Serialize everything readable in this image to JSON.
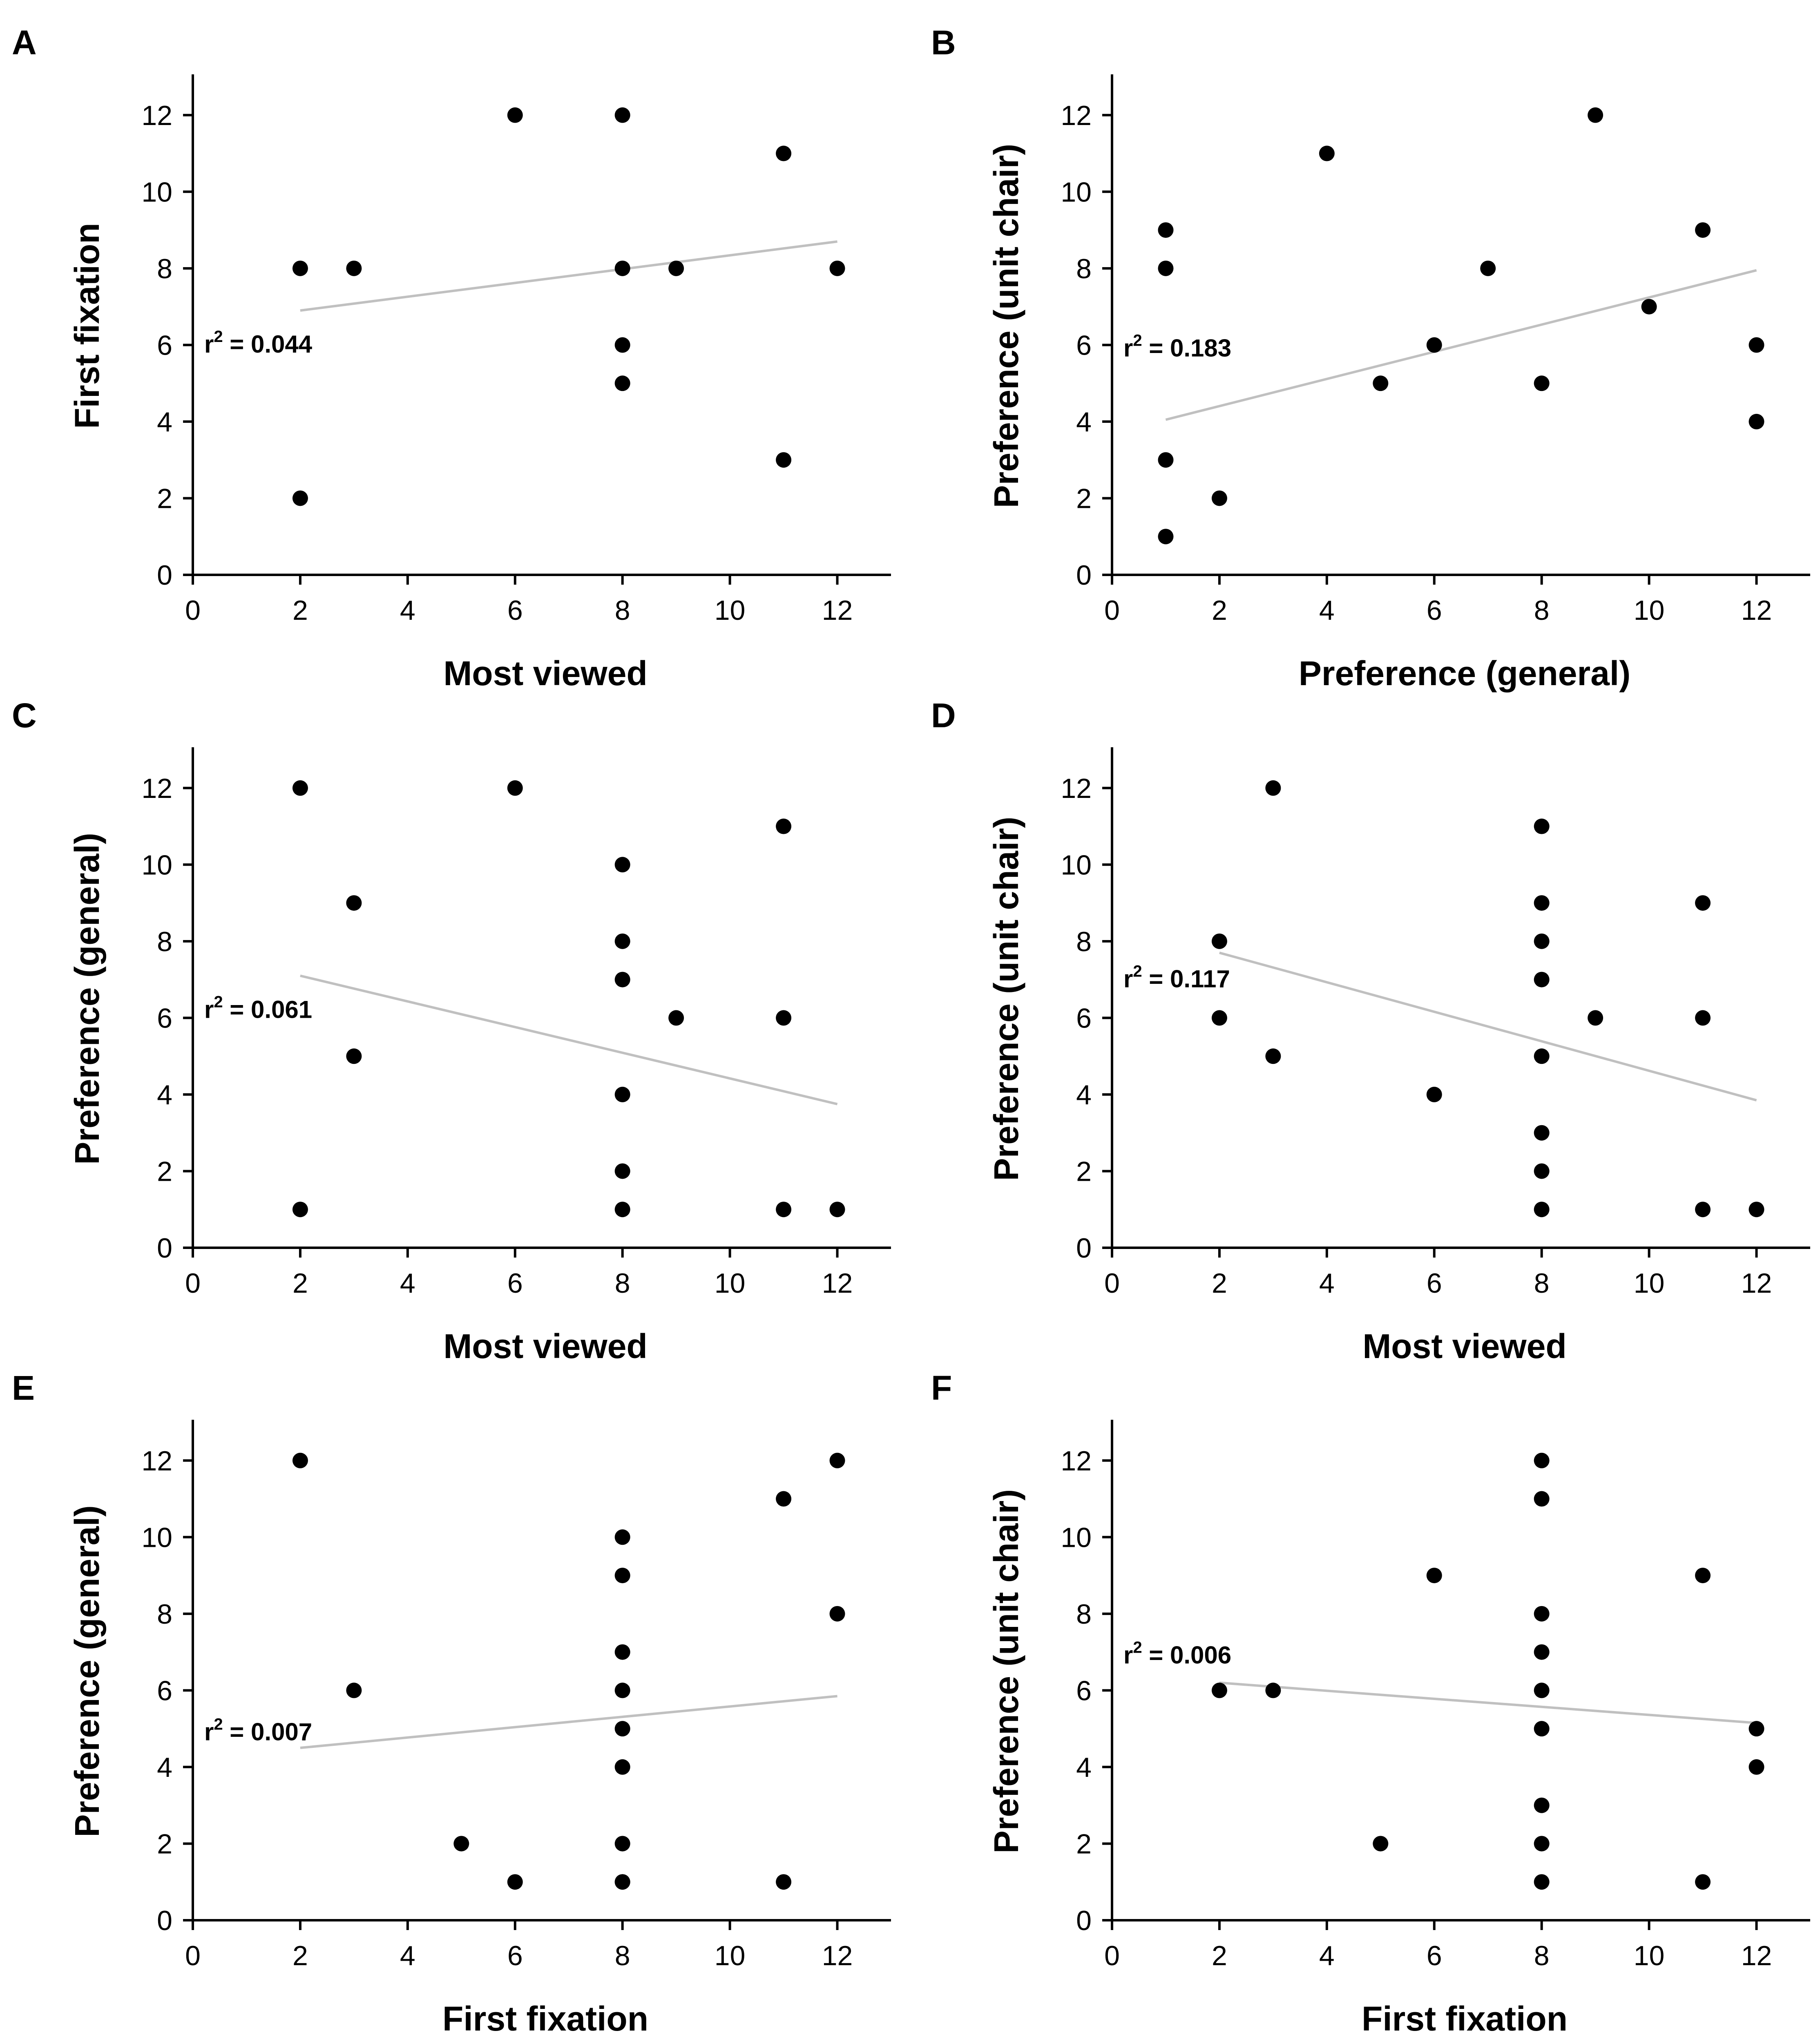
{
  "colors": {
    "points": "#000000",
    "fit_line": "#c0c0c0",
    "axes": "#000000",
    "background": "#ffffff"
  },
  "chart_data": [
    {
      "panel": "A",
      "type": "scatter",
      "xlabel": "Most viewed",
      "ylabel": "First fixation",
      "xlim": [
        0,
        13
      ],
      "ylim": [
        0,
        13
      ],
      "xticks": [
        "0",
        "2",
        "4",
        "6",
        "8",
        "10",
        "12"
      ],
      "yticks": [
        "0",
        "2",
        "4",
        "6",
        "8",
        "10",
        "12"
      ],
      "annotation": {
        "r": "r",
        "sup": "2",
        "value": " = 0.044"
      },
      "fit": {
        "x": [
          2,
          12
        ],
        "y": [
          6.9,
          8.7
        ]
      },
      "x": [
        2,
        2,
        3,
        6,
        8,
        8,
        8,
        8,
        9,
        11,
        11,
        12
      ],
      "y": [
        8,
        2,
        8,
        12,
        12,
        8,
        6,
        5,
        8,
        11,
        3,
        8
      ]
    },
    {
      "panel": "B",
      "type": "scatter",
      "xlabel": "Preference (general)",
      "ylabel": "Preference (unit chair)",
      "xlim": [
        0,
        13
      ],
      "ylim": [
        0,
        13
      ],
      "xticks": [
        "0",
        "2",
        "4",
        "6",
        "8",
        "10",
        "12"
      ],
      "yticks": [
        "0",
        "2",
        "4",
        "6",
        "8",
        "10",
        "12"
      ],
      "annotation": {
        "r": "r",
        "sup": "2",
        "value": " = 0.183"
      },
      "fit": {
        "x": [
          1,
          12
        ],
        "y": [
          4.05,
          7.95
        ]
      },
      "x": [
        1,
        1,
        1,
        1,
        2,
        4,
        5,
        6,
        7,
        8,
        9,
        10,
        11,
        12,
        12
      ],
      "y": [
        9,
        8,
        3,
        1,
        2,
        11,
        5,
        6,
        8,
        5,
        12,
        7,
        9,
        6,
        4
      ]
    },
    {
      "panel": "C",
      "type": "scatter",
      "xlabel": "Most viewed",
      "ylabel": "Preference (general)",
      "xlim": [
        0,
        13
      ],
      "ylim": [
        0,
        13
      ],
      "xticks": [
        "0",
        "2",
        "4",
        "6",
        "8",
        "10",
        "12"
      ],
      "yticks": [
        "0",
        "2",
        "4",
        "6",
        "8",
        "10",
        "12"
      ],
      "annotation": {
        "r": "r",
        "sup": "2",
        "value": " = 0.061"
      },
      "fit": {
        "x": [
          2,
          12
        ],
        "y": [
          7.1,
          3.75
        ]
      },
      "x": [
        2,
        2,
        3,
        3,
        6,
        8,
        8,
        8,
        8,
        8,
        8,
        9,
        11,
        11,
        11,
        12
      ],
      "y": [
        12,
        1,
        9,
        5,
        12,
        10,
        8,
        7,
        4,
        2,
        1,
        6,
        11,
        6,
        1,
        1
      ]
    },
    {
      "panel": "D",
      "type": "scatter",
      "xlabel": "Most viewed",
      "ylabel": "Preference (unit chair)",
      "xlim": [
        0,
        13
      ],
      "ylim": [
        0,
        13
      ],
      "xticks": [
        "0",
        "2",
        "4",
        "6",
        "8",
        "10",
        "12"
      ],
      "yticks": [
        "0",
        "2",
        "4",
        "6",
        "8",
        "10",
        "12"
      ],
      "annotation": {
        "r": "r",
        "sup": "2",
        "value": " = 0.117"
      },
      "fit": {
        "x": [
          2,
          12
        ],
        "y": [
          7.7,
          3.85
        ]
      },
      "x": [
        2,
        2,
        3,
        3,
        6,
        8,
        8,
        8,
        8,
        8,
        8,
        8,
        8,
        9,
        11,
        11,
        11,
        12
      ],
      "y": [
        8,
        6,
        12,
        5,
        4,
        11,
        9,
        8,
        7,
        5,
        3,
        2,
        1,
        6,
        9,
        6,
        1,
        1
      ]
    },
    {
      "panel": "E",
      "type": "scatter",
      "xlabel": "First fixation",
      "ylabel": "Preference (general)",
      "xlim": [
        0,
        13
      ],
      "ylim": [
        0,
        13
      ],
      "xticks": [
        "0",
        "2",
        "4",
        "6",
        "8",
        "10",
        "12"
      ],
      "yticks": [
        "0",
        "2",
        "4",
        "6",
        "8",
        "10",
        "12"
      ],
      "annotation": {
        "r": "r",
        "sup": "2",
        "value": " = 0.007"
      },
      "fit": {
        "x": [
          2,
          12
        ],
        "y": [
          4.5,
          5.85
        ]
      },
      "x": [
        2,
        3,
        5,
        6,
        8,
        8,
        8,
        8,
        8,
        8,
        8,
        8,
        8,
        11,
        11,
        12,
        12
      ],
      "y": [
        12,
        6,
        2,
        1,
        10,
        9,
        7,
        6,
        5,
        4,
        2,
        1,
        1,
        11,
        1,
        12,
        8
      ]
    },
    {
      "panel": "F",
      "type": "scatter",
      "xlabel": "First fixation",
      "ylabel": "Preference (unit chair)",
      "xlim": [
        0,
        13
      ],
      "ylim": [
        0,
        13
      ],
      "xticks": [
        "0",
        "2",
        "4",
        "6",
        "8",
        "10",
        "12"
      ],
      "yticks": [
        "0",
        "2",
        "4",
        "6",
        "8",
        "10",
        "12"
      ],
      "annotation": {
        "r": "r",
        "sup": "2",
        "value": " = 0.006"
      },
      "fit": {
        "x": [
          2,
          12
        ],
        "y": [
          6.2,
          5.15
        ]
      },
      "x": [
        2,
        3,
        5,
        6,
        8,
        8,
        8,
        8,
        8,
        8,
        8,
        8,
        8,
        11,
        11,
        12,
        12
      ],
      "y": [
        6,
        6,
        2,
        9,
        12,
        11,
        8,
        7,
        6,
        5,
        3,
        2,
        1,
        9,
        1,
        5,
        4
      ]
    }
  ]
}
